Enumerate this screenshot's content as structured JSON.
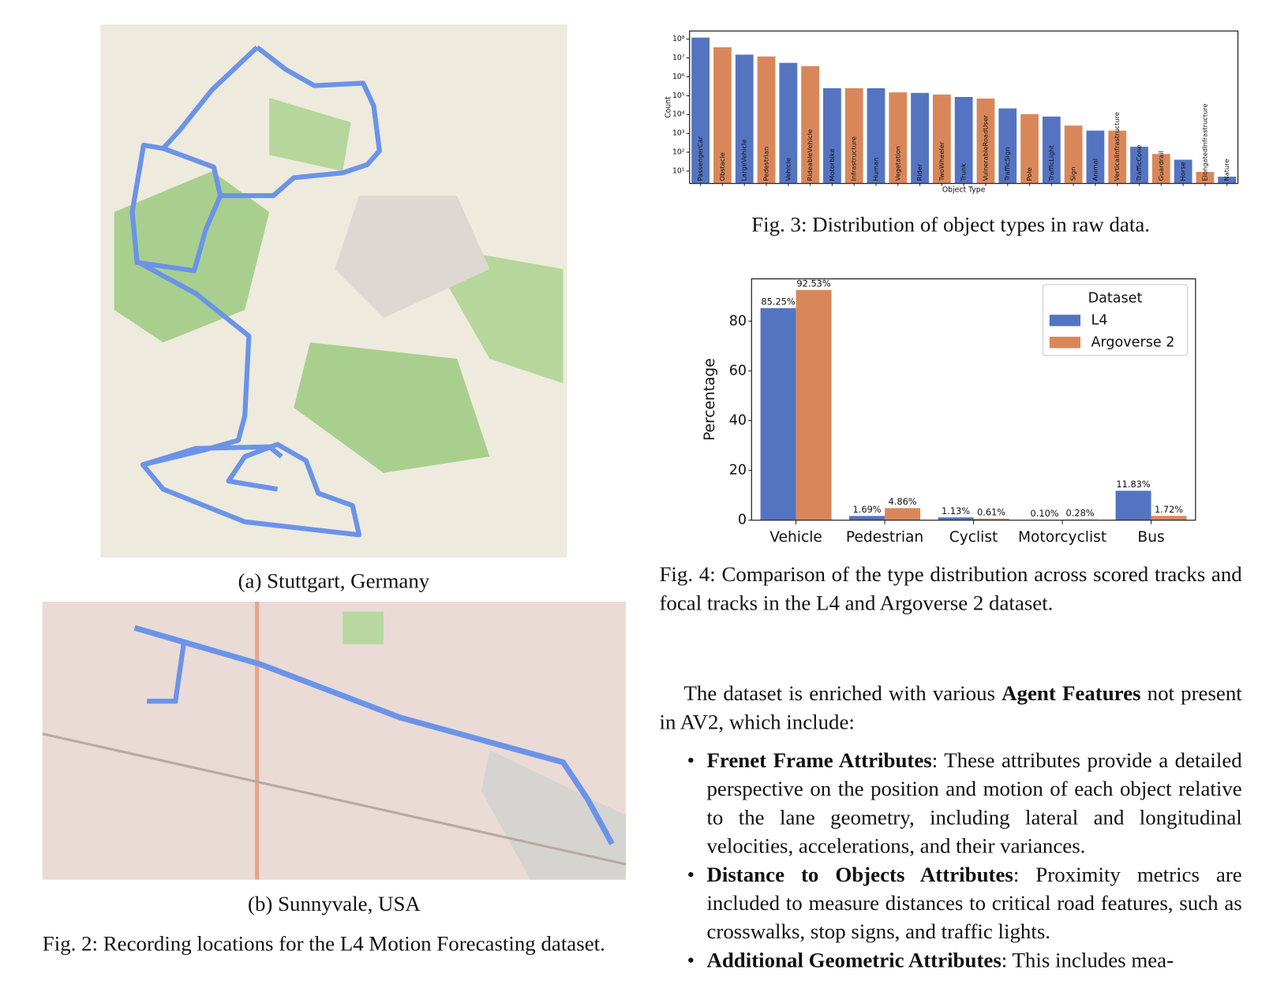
{
  "figure2": {
    "subcaption_a": "(a) Stuttgart, Germany",
    "subcaption_b": "(b) Sunnyvale, USA",
    "caption": "Fig. 2: Recording locations for the L4 Motion Forecasting dataset."
  },
  "chart_data": [
    {
      "type": "bar",
      "caption": "Fig. 3: Distribution of object types in raw data.",
      "xlabel": "Object Type",
      "ylabel": "Count",
      "log_scale": true,
      "categories": [
        "PassengerCar",
        "Obstacle",
        "LargeVehicle",
        "Pedestrian",
        "Vehicle",
        "RideableVehicle",
        "Motorbike",
        "Infrastructure",
        "Human",
        "Vegetation",
        "Rider",
        "TwoWheeler",
        "Trunk",
        "VulnerableRoadUser",
        "TrafficSign",
        "Pole",
        "TrafficLight",
        "Sign",
        "Animal",
        "VerticalInfrastructure",
        "TrafficCone",
        "Guardrail",
        "Horse",
        "ElongatedInfrastructure",
        "Nature"
      ],
      "values": [
        120000000,
        37000000,
        15000000,
        12000000,
        5500000,
        3700000,
        250000,
        250000,
        250000,
        150000,
        140000,
        115000,
        85000,
        70000,
        21000,
        10500,
        7800,
        2600,
        1400,
        1400,
        195,
        80,
        40,
        9,
        5
      ],
      "colors": [
        "#5474c2",
        "#d9875a",
        "#5474c2",
        "#d9875a",
        "#5474c2",
        "#d9875a",
        "#5474c2",
        "#d9875a",
        "#5474c2",
        "#d9875a",
        "#5474c2",
        "#d9875a",
        "#5474c2",
        "#d9875a",
        "#5474c2",
        "#d9875a",
        "#5474c2",
        "#d9875a",
        "#5474c2",
        "#d9875a",
        "#5474c2",
        "#d9875a",
        "#5474c2",
        "#d9875a",
        "#5474c2"
      ],
      "ylim": [
        2.2,
        270000000
      ],
      "yticks": [
        {
          "value": 10,
          "label": "10¹"
        },
        {
          "value": 100,
          "label": "10²"
        },
        {
          "value": 1000,
          "label": "10³"
        },
        {
          "value": 10000,
          "label": "10⁴"
        },
        {
          "value": 100000,
          "label": "10⁵"
        },
        {
          "value": 1000000,
          "label": "10⁶"
        },
        {
          "value": 10000000,
          "label": "10⁷"
        },
        {
          "value": 100000000,
          "label": "10⁸"
        }
      ],
      "grid": false
    },
    {
      "type": "grouped_bar",
      "caption": "Fig. 4: Comparison of the type distribution across scored tracks and focal tracks in the L4 and Argoverse 2 dataset.",
      "ylabel": "Percentage",
      "categories": [
        "Vehicle",
        "Pedestrian",
        "Cyclist",
        "Motorcyclist",
        "Bus"
      ],
      "series": [
        {
          "name": "L4",
          "color": "#5474c2",
          "values": [
            85.25,
            1.69,
            1.13,
            0.1,
            11.83
          ],
          "value_labels": [
            "85.25%",
            "1.69%",
            "1.13%",
            "0.10%",
            "11.83%"
          ]
        },
        {
          "name": "Argoverse 2",
          "color": "#d9875a",
          "values": [
            92.53,
            4.86,
            0.61,
            0.28,
            1.72
          ],
          "value_labels": [
            "92.53%",
            "4.86%",
            "0.61%",
            "0.28%",
            "1.72%"
          ]
        }
      ],
      "legend_title": "Dataset",
      "legend": "upper right",
      "ylim": [
        0,
        97
      ],
      "yticks": [
        0,
        20,
        40,
        60,
        80
      ],
      "grid": false
    }
  ],
  "body": {
    "intro": [
      "The dataset is enriched with various ",
      "Agent Features",
      " not present in AV2, which include:"
    ],
    "bullets": [
      {
        "term": "Frenet Frame Attributes",
        "text": ": These attributes provide a detailed perspective on the position and motion of each object relative to the lane geometry, including lateral and longitudinal velocities, accelerations, and their variances."
      },
      {
        "term": "Distance to Objects Attributes",
        "text": ": Proximity metrics are included to measure distances to critical road features, such as crosswalks, stop signs, and traffic lights."
      },
      {
        "term": "Additional Geometric Attributes",
        "text": ": This includes mea-"
      }
    ]
  }
}
